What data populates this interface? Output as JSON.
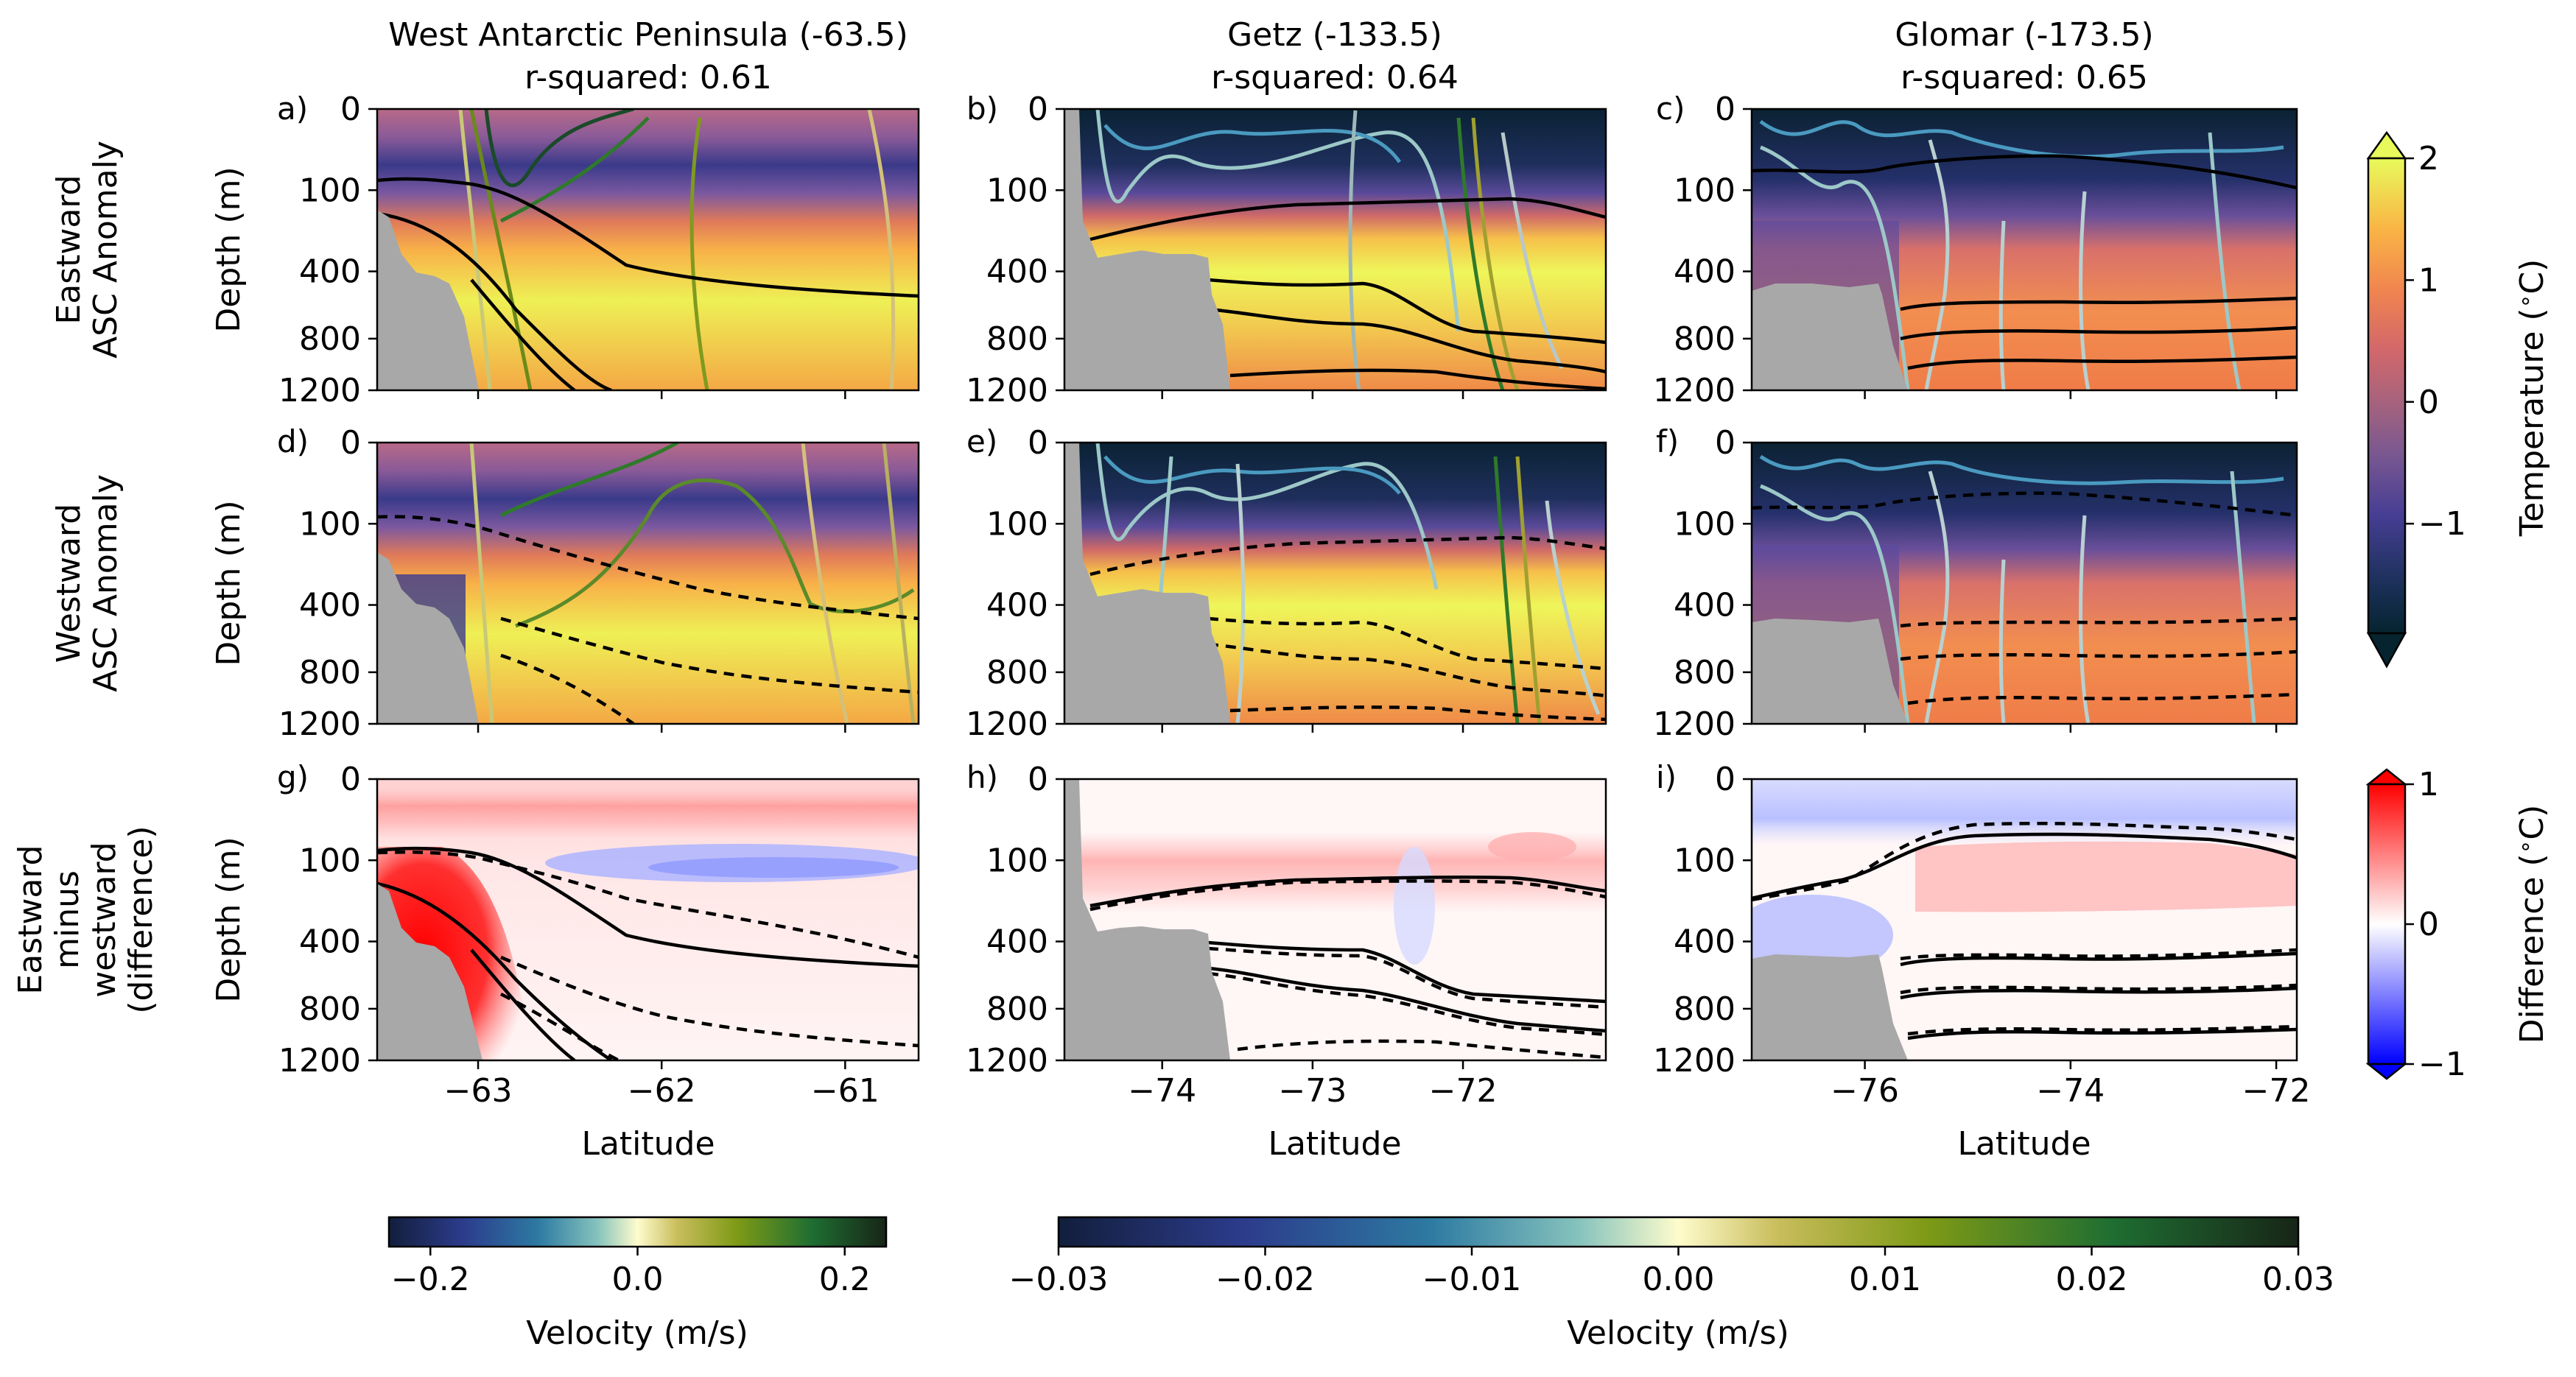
{
  "figure": {
    "columns": [
      {
        "title": "West Antarctic Peninsula (-63.5)",
        "r2": "r-squared: 0.61"
      },
      {
        "title": "Getz (-133.5)",
        "r2": "r-squared: 0.64"
      },
      {
        "title": "Glomar (-173.5)",
        "r2": "r-squared: 0.65"
      }
    ],
    "row_labels": [
      [
        "Eastward",
        "ASC Anomaly"
      ],
      [
        "Westward",
        "ASC Anomaly"
      ],
      [
        "Eastward",
        "minus",
        "westward",
        "(difference)"
      ]
    ],
    "panel_letters": [
      "a)",
      "b)",
      "c)",
      "d)",
      "e)",
      "f)",
      "g)",
      "h)",
      "i)"
    ]
  },
  "colors": {
    "land": "#a8a8a8",
    "isotherm": "#000000",
    "diff_positive": "#ff0000",
    "diff_negative": "#0000ff"
  },
  "chart_data": {
    "type": "heatmap",
    "xlabel": "Latitude",
    "ylabel": "Depth (m)",
    "y_ticks": [
      0,
      100,
      400,
      800,
      1200
    ],
    "x_ticks": [
      [
        -63,
        -62,
        -61
      ],
      [
        -74,
        -73,
        -72
      ],
      [
        -76,
        -74,
        -72
      ]
    ],
    "xlim": [
      [
        -63.55,
        -60.6
      ],
      [
        -74.65,
        -71.05
      ],
      [
        -77.1,
        -71.8
      ]
    ],
    "linestyles": {
      "eastward": "solid",
      "westward": "dashed",
      "difference": "solid and dashed"
    },
    "colorbars": [
      {
        "label": "Temperature (°C)",
        "label_base": "Temperature (",
        "label_unit": "C)",
        "ticks": [
          "2",
          "1",
          "0",
          "−1"
        ],
        "tick_values": [
          2,
          1,
          0,
          -1
        ],
        "range": [
          -1.9,
          2
        ],
        "colormap": "thermal",
        "extend": "both"
      },
      {
        "label": "Difference (°C)",
        "label_base": "Difference (",
        "label_unit": "C)",
        "ticks": [
          "1",
          "0",
          "−1"
        ],
        "tick_values": [
          1,
          0,
          -1
        ],
        "range": [
          -1,
          1
        ],
        "colormap": "bwr",
        "extend": "both"
      },
      {
        "label": "Velocity (m/s)",
        "ticks": [
          "−0.2",
          "0.0",
          "0.2"
        ],
        "tick_values": [
          -0.2,
          0,
          0.2
        ],
        "range": [
          -0.24,
          0.24
        ],
        "colormap": "delta"
      },
      {
        "label": "Velocity (m/s)",
        "ticks": [
          "−0.03",
          "−0.02",
          "−0.01",
          "0.00",
          "0.01",
          "0.02",
          "0.03"
        ],
        "tick_values": [
          -0.03,
          -0.02,
          -0.01,
          0,
          0.01,
          0.02,
          0.03
        ],
        "range": [
          -0.03,
          0.03
        ],
        "colormap": "delta"
      }
    ]
  }
}
